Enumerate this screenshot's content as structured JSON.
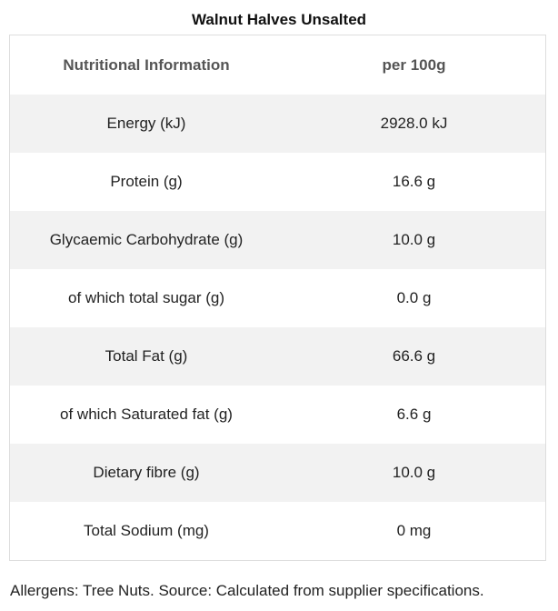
{
  "title": "Walnut Halves Unsalted",
  "table": {
    "header": {
      "label": "Nutritional Information",
      "value": "per 100g"
    },
    "rows": [
      {
        "label": "Energy (kJ)",
        "value": "2928.0 kJ"
      },
      {
        "label": "Protein (g)",
        "value": "16.6 g"
      },
      {
        "label": "Glycaemic Carbohydrate (g)",
        "value": "10.0 g"
      },
      {
        "label": "of which total sugar (g)",
        "value": "0.0 g"
      },
      {
        "label": "Total Fat (g)",
        "value": "66.6 g"
      },
      {
        "label": "of which Saturated fat (g)",
        "value": "6.6 g"
      },
      {
        "label": "Dietary fibre (g)",
        "value": "10.0 g"
      },
      {
        "label": "Total Sodium (mg)",
        "value": "0 mg"
      }
    ]
  },
  "footer": "Allergens: Tree Nuts. Source: Calculated from supplier specifications.",
  "colors": {
    "row_alt_background": "#f2f2f2",
    "border": "#dddddd",
    "header_text": "#555555"
  }
}
